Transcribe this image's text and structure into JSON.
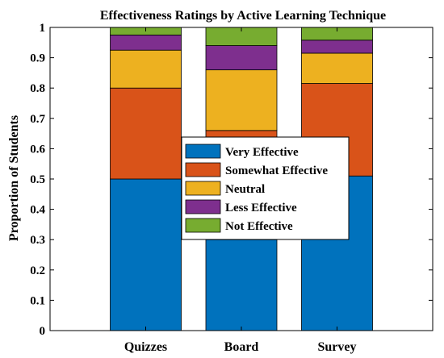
{
  "chart_data": {
    "type": "bar",
    "stacked": true,
    "title": "Effectiveness Ratings by Active Learning Technique",
    "xlabel": "",
    "ylabel": "Proportion of Students",
    "ylim": [
      0,
      1
    ],
    "yticks": [
      "0",
      "0.1",
      "0.2",
      "0.3",
      "0.4",
      "0.5",
      "0.6",
      "0.7",
      "0.8",
      "0.9",
      "1"
    ],
    "categories": [
      "Quizzes",
      "Board",
      "Survey"
    ],
    "series": [
      {
        "name": "Very Effective",
        "color": "#0072BD",
        "values": [
          0.5,
          0.3,
          0.51
        ]
      },
      {
        "name": "Somewhat Effective",
        "color": "#D95319",
        "values": [
          0.3,
          0.36,
          0.305
        ]
      },
      {
        "name": "Neutral",
        "color": "#EDB120",
        "values": [
          0.125,
          0.2,
          0.1
        ]
      },
      {
        "name": "Less Effective",
        "color": "#7E2F8E",
        "values": [
          0.05,
          0.08,
          0.043
        ]
      },
      {
        "name": "Not Effective",
        "color": "#77AC30",
        "values": [
          0.025,
          0.06,
          0.042
        ]
      }
    ],
    "legend_position": "center",
    "grid": false
  }
}
